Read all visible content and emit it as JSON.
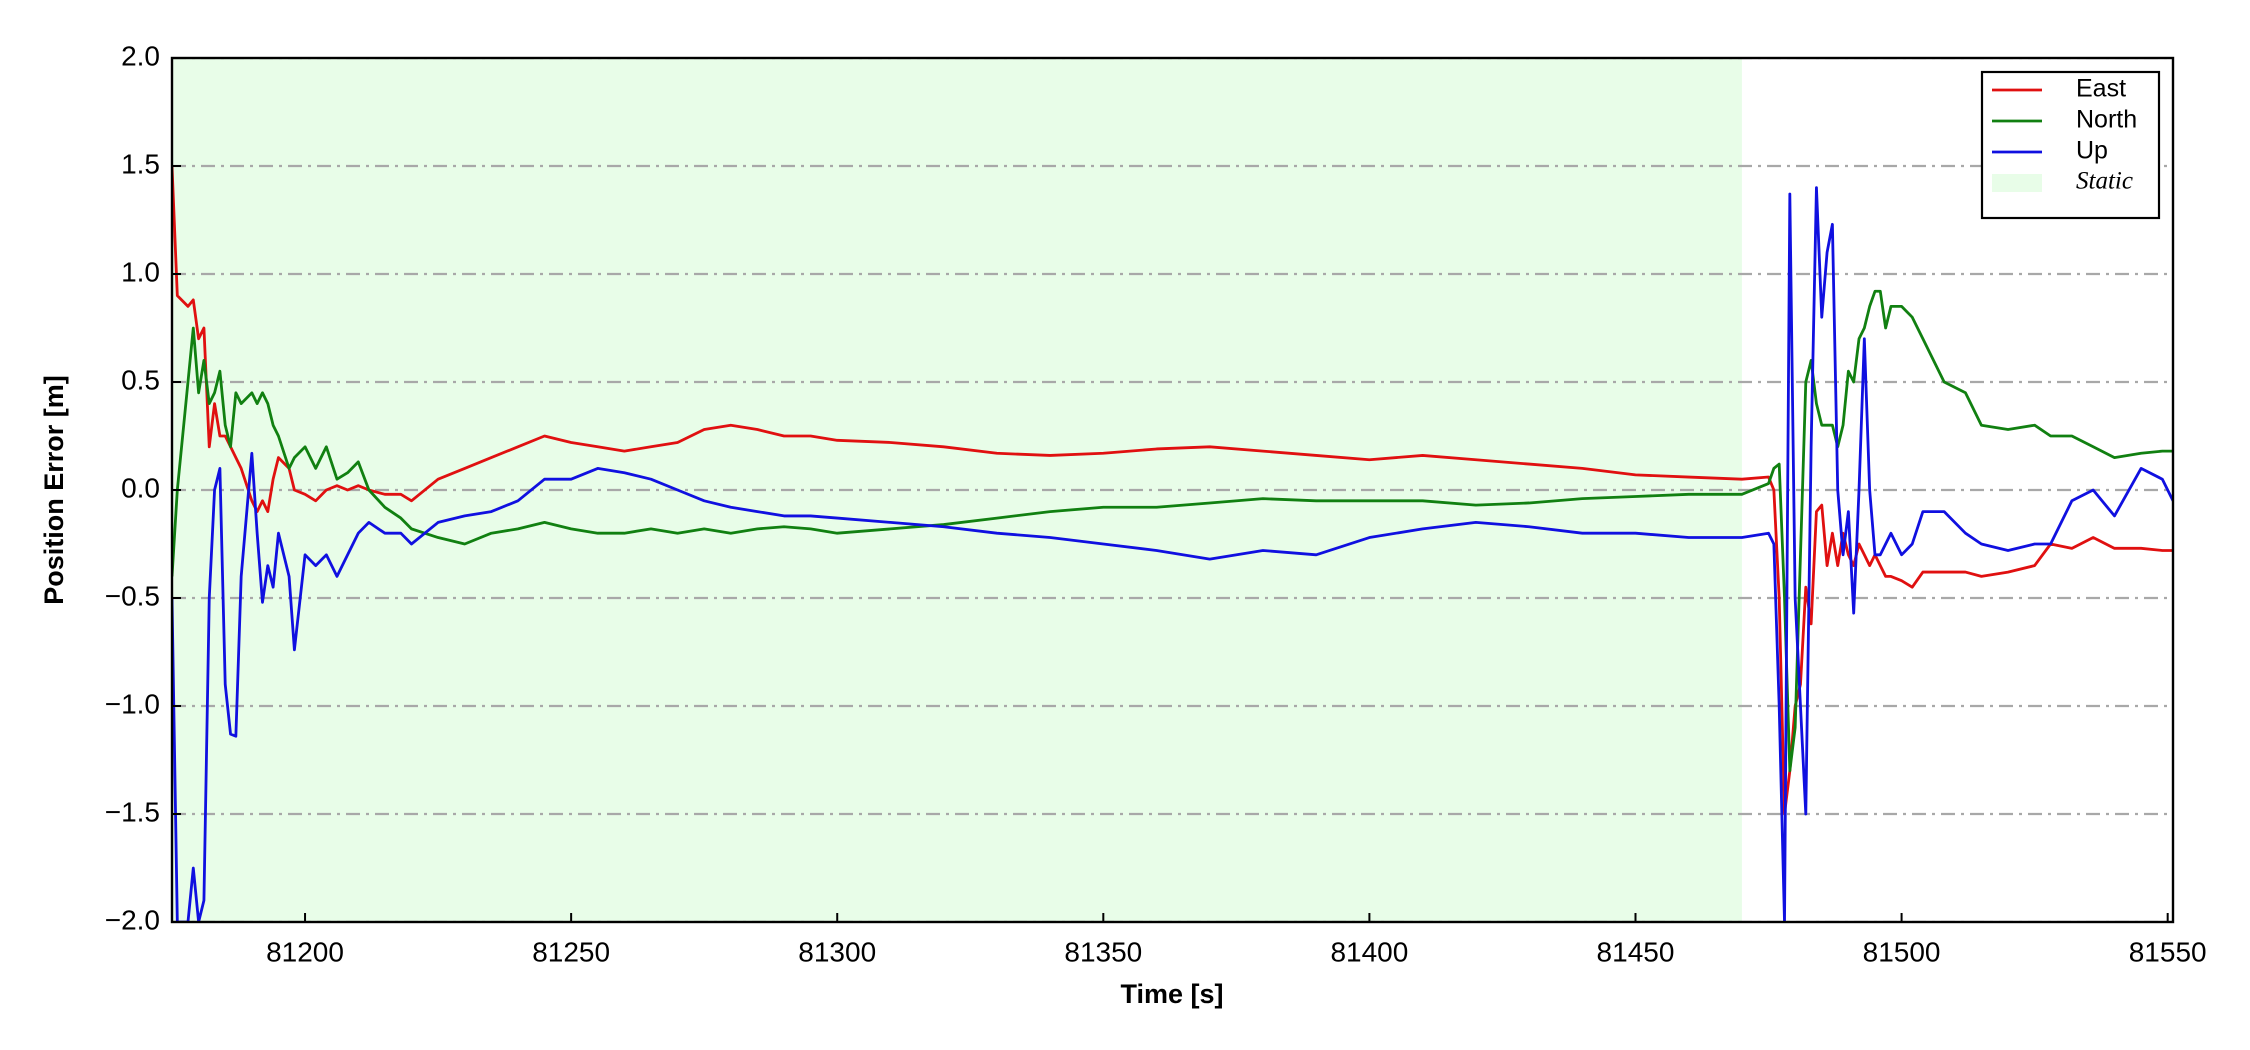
{
  "chart_data": {
    "type": "line",
    "xlabel": "Time [s]",
    "ylabel": "Position Error [m]",
    "xlim": [
      81175,
      81551
    ],
    "ylim": [
      -2,
      2
    ],
    "xticks": [
      81200,
      81250,
      81300,
      81350,
      81400,
      81450,
      81500,
      81550
    ],
    "yticks": [
      {
        "value": -2,
        "label": "−2.0"
      },
      {
        "value": -1.5,
        "label": "−1.5"
      },
      {
        "value": -1,
        "label": "−1.0"
      },
      {
        "value": -0.5,
        "label": "−0.5"
      },
      {
        "value": 0,
        "label": "0.0"
      },
      {
        "value": 0.5,
        "label": "0.5"
      },
      {
        "value": 1,
        "label": "1.0"
      },
      {
        "value": 1.5,
        "label": "1.5"
      },
      {
        "value": 2,
        "label": "2.0"
      }
    ],
    "grid": true,
    "legend": "upper right",
    "span": {
      "start": 81175,
      "end": 81470,
      "label": "Static",
      "color": "#e8fde8"
    },
    "x": [
      81175,
      81176,
      81178,
      81179,
      81180,
      81181,
      81182,
      81183,
      81184,
      81185,
      81186,
      81187,
      81188,
      81190,
      81191,
      81192,
      81193,
      81194,
      81195,
      81197,
      81198,
      81200,
      81202,
      81204,
      81206,
      81208,
      81210,
      81212,
      81215,
      81218,
      81220,
      81225,
      81230,
      81235,
      81240,
      81245,
      81250,
      81255,
      81260,
      81265,
      81270,
      81275,
      81280,
      81285,
      81290,
      81295,
      81300,
      81310,
      81320,
      81330,
      81340,
      81350,
      81360,
      81370,
      81380,
      81390,
      81400,
      81410,
      81420,
      81430,
      81440,
      81450,
      81460,
      81470,
      81475,
      81476,
      81477,
      81478,
      81479,
      81480,
      81481,
      81482,
      81483,
      81484,
      81485,
      81486,
      81487,
      81488,
      81489,
      81490,
      81491,
      81492,
      81493,
      81494,
      81495,
      81496,
      81497,
      81498,
      81500,
      81502,
      81504,
      81508,
      81512,
      81515,
      81520,
      81525,
      81528,
      81532,
      81536,
      81540,
      81545,
      81549,
      81551
    ],
    "series": [
      {
        "name": "East",
        "color": "#e01010",
        "values": [
          1.5,
          0.9,
          0.85,
          0.88,
          0.7,
          0.75,
          0.2,
          0.4,
          0.25,
          0.25,
          0.2,
          0.15,
          0.1,
          -0.05,
          -0.1,
          -0.05,
          -0.1,
          0.05,
          0.15,
          0.1,
          0.0,
          -0.02,
          -0.05,
          0.0,
          0.02,
          0.0,
          0.02,
          0.0,
          -0.02,
          -0.02,
          -0.05,
          0.05,
          0.1,
          0.15,
          0.2,
          0.25,
          0.22,
          0.2,
          0.18,
          0.2,
          0.22,
          0.28,
          0.3,
          0.28,
          0.25,
          0.25,
          0.23,
          0.22,
          0.2,
          0.17,
          0.16,
          0.17,
          0.19,
          0.2,
          0.18,
          0.16,
          0.14,
          0.16,
          0.14,
          0.12,
          0.1,
          0.07,
          0.06,
          0.05,
          0.06,
          0.0,
          -0.5,
          -1.5,
          -1.3,
          -1.0,
          -0.9,
          -0.45,
          -0.62,
          -0.1,
          -0.07,
          -0.35,
          -0.2,
          -0.35,
          -0.2,
          -0.3,
          -0.35,
          -0.25,
          -0.3,
          -0.35,
          -0.3,
          -0.35,
          -0.4,
          -0.4,
          -0.42,
          -0.45,
          -0.38,
          -0.38,
          -0.38,
          -0.4,
          -0.38,
          -0.35,
          -0.25,
          -0.27,
          -0.22,
          -0.27,
          -0.27,
          -0.28,
          -0.28
        ]
      },
      {
        "name": "North",
        "color": "#118011",
        "values": [
          -0.4,
          0.0,
          0.5,
          0.75,
          0.45,
          0.6,
          0.4,
          0.45,
          0.55,
          0.3,
          0.2,
          0.45,
          0.4,
          0.45,
          0.4,
          0.45,
          0.4,
          0.3,
          0.25,
          0.1,
          0.15,
          0.2,
          0.1,
          0.2,
          0.05,
          0.08,
          0.13,
          0.0,
          -0.08,
          -0.13,
          -0.18,
          -0.22,
          -0.25,
          -0.2,
          -0.18,
          -0.15,
          -0.18,
          -0.2,
          -0.2,
          -0.18,
          -0.2,
          -0.18,
          -0.2,
          -0.18,
          -0.17,
          -0.18,
          -0.2,
          -0.18,
          -0.16,
          -0.13,
          -0.1,
          -0.08,
          -0.08,
          -0.06,
          -0.04,
          -0.05,
          -0.05,
          -0.05,
          -0.07,
          -0.06,
          -0.04,
          -0.03,
          -0.02,
          -0.02,
          0.03,
          0.1,
          0.12,
          -0.5,
          -1.3,
          -1.1,
          -0.3,
          0.5,
          0.6,
          0.4,
          0.3,
          0.3,
          0.3,
          0.2,
          0.3,
          0.55,
          0.5,
          0.7,
          0.75,
          0.85,
          0.92,
          0.92,
          0.75,
          0.85,
          0.85,
          0.8,
          0.7,
          0.5,
          0.45,
          0.3,
          0.28,
          0.3,
          0.25,
          0.25,
          0.2,
          0.15,
          0.17,
          0.18,
          0.18
        ]
      },
      {
        "name": "Up",
        "color": "#1010e0",
        "values": [
          -0.5,
          -2.0,
          -2.0,
          -1.75,
          -2.0,
          -1.9,
          -0.5,
          0.0,
          0.1,
          -0.9,
          -1.13,
          -1.14,
          -0.4,
          0.17,
          -0.2,
          -0.52,
          -0.35,
          -0.45,
          -0.2,
          -0.4,
          -0.74,
          -0.3,
          -0.35,
          -0.3,
          -0.4,
          -0.3,
          -0.2,
          -0.15,
          -0.2,
          -0.2,
          -0.25,
          -0.15,
          -0.12,
          -0.1,
          -0.05,
          0.05,
          0.05,
          0.1,
          0.08,
          0.05,
          0.0,
          -0.05,
          -0.08,
          -0.1,
          -0.12,
          -0.12,
          -0.13,
          -0.15,
          -0.17,
          -0.2,
          -0.22,
          -0.25,
          -0.28,
          -0.32,
          -0.28,
          -0.3,
          -0.22,
          -0.18,
          -0.15,
          -0.17,
          -0.2,
          -0.2,
          -0.22,
          -0.22,
          -0.2,
          -0.25,
          -1.0,
          -2.0,
          1.37,
          -0.5,
          -1.0,
          -1.5,
          0.2,
          1.4,
          0.8,
          1.1,
          1.23,
          0.0,
          -0.3,
          -0.1,
          -0.57,
          0.0,
          0.7,
          0.0,
          -0.3,
          -0.3,
          -0.25,
          -0.2,
          -0.3,
          -0.25,
          -0.1,
          -0.1,
          -0.2,
          -0.25,
          -0.28,
          -0.25,
          -0.25,
          -0.05,
          0.0,
          -0.12,
          0.1,
          0.05,
          -0.05
        ]
      }
    ]
  }
}
